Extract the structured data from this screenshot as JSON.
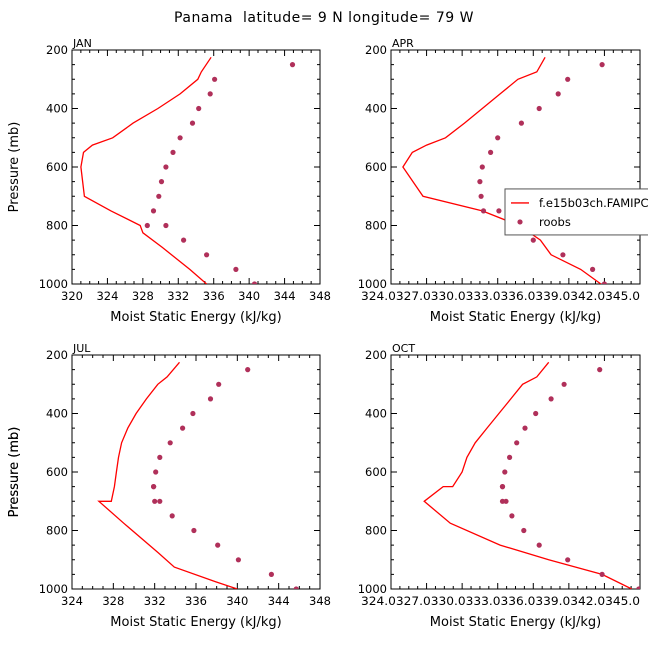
{
  "figure": {
    "title": "Panama  latitude= 9 N longitude= 79 W",
    "colors": {
      "model": "#ff0000",
      "obs": "#b0305a",
      "axes": "#000000",
      "legend_border": "#555555"
    }
  },
  "chart_data": [
    {
      "type": "line",
      "panel": "JAN",
      "xlabel": "Moist Static Energy (kJ/kg)",
      "ylabel": "Pressure (mb)",
      "xlim": [
        320,
        348
      ],
      "ylim": [
        1000,
        200
      ],
      "yscale": "linear",
      "y_reversed": true,
      "xticks": [
        "320",
        "324",
        "328",
        "332",
        "336",
        "340",
        "344",
        "348"
      ],
      "yticks": [
        "200",
        "400",
        "600",
        "800",
        "1000"
      ],
      "series": [
        {
          "name": "f.e15b03ch.FAMIPC5.ne30_g16.ctrl",
          "type": "line",
          "x": [
            335.7,
            334.6,
            334.2,
            332.2,
            329.7,
            326.9,
            324.6,
            322.3,
            321.3,
            321.0,
            321.4,
            324.4,
            327.7,
            328.0,
            330.2,
            333.3,
            335.2
          ],
          "y": [
            225,
            275,
            300,
            350,
            400,
            450,
            500,
            525,
            550,
            600,
            700,
            750,
            800,
            825,
            875,
            950,
            1000
          ]
        },
        {
          "name": "roobs",
          "type": "scatter",
          "x": [
            344.9,
            336.1,
            335.6,
            334.3,
            333.6,
            332.2,
            331.4,
            330.6,
            330.1,
            329.8,
            329.2,
            328.5,
            330.6,
            332.6,
            335.2,
            338.5,
            340.6
          ],
          "y": [
            250,
            300,
            350,
            400,
            450,
            500,
            550,
            600,
            650,
            700,
            750,
            800,
            800,
            850,
            900,
            950,
            1000
          ]
        }
      ]
    },
    {
      "type": "line",
      "panel": "APR",
      "xlabel": "Moist Static Energy (kJ/kg)",
      "ylabel": "",
      "xlim": [
        324.0,
        345.0
      ],
      "ylim": [
        1000,
        200
      ],
      "y_reversed": true,
      "xticks": [
        "324.0",
        "327.0",
        "330.0",
        "333.0",
        "336.0",
        "339.0",
        "342.0",
        "345.0"
      ],
      "xtick_display": "324.0327.0330.0333.0336.0339.0342.0345.0",
      "yticks": [
        "200",
        "400",
        "600",
        "800",
        "1000"
      ],
      "legend": {
        "position": "right",
        "entries": [
          "f.e15b03ch.FAMIPC5.ne30_g16.ctrl",
          "roobs"
        ]
      },
      "series": [
        {
          "name": "f.e15b03ch.FAMIPC5.ne30_g16.ctrl",
          "type": "line",
          "x": [
            337.0,
            336.3,
            334.7,
            333.2,
            331.7,
            330.2,
            328.6,
            327.0,
            325.8,
            325.0,
            326.7,
            331.7,
            334.8,
            336.6,
            337.5,
            340.0,
            341.7
          ],
          "y": [
            225,
            275,
            300,
            350,
            400,
            450,
            500,
            525,
            550,
            600,
            700,
            750,
            800,
            850,
            900,
            950,
            1000
          ]
        },
        {
          "name": "roobs",
          "type": "scatter",
          "x": [
            341.8,
            338.9,
            338.1,
            336.5,
            335.0,
            333.0,
            332.4,
            331.7,
            331.5,
            331.6,
            331.8,
            333.1,
            335.5,
            336.0,
            338.5,
            341.0,
            342.0
          ],
          "y": [
            250,
            300,
            350,
            400,
            450,
            500,
            550,
            600,
            650,
            700,
            750,
            750,
            800,
            850,
            900,
            950,
            1000
          ]
        }
      ]
    },
    {
      "type": "line",
      "panel": "JUL",
      "xlabel": "Moist Static Energy (kJ/kg)",
      "ylabel": "Pressure (mb)",
      "xlim": [
        324,
        348
      ],
      "ylim": [
        1000,
        200
      ],
      "y_reversed": true,
      "xticks": [
        "324",
        "328",
        "332",
        "336",
        "340",
        "344",
        "348"
      ],
      "yticks": [
        "200",
        "400",
        "600",
        "800",
        "1000"
      ],
      "series": [
        {
          "name": "f.e15b03ch.FAMIPC5.ne30_g16.ctrl",
          "type": "line",
          "x": [
            334.4,
            333.2,
            332.3,
            331.2,
            330.2,
            329.4,
            328.8,
            328.5,
            328.3,
            328.1,
            327.8,
            326.6,
            329.0,
            332.3,
            333.9,
            337.9,
            340.0
          ],
          "y": [
            225,
            275,
            300,
            350,
            400,
            450,
            500,
            550,
            600,
            650,
            700,
            700,
            775,
            875,
            925,
            975,
            1000
          ]
        },
        {
          "name": "roobs",
          "type": "scatter",
          "x": [
            341.0,
            338.2,
            337.4,
            335.7,
            334.7,
            333.5,
            332.5,
            332.1,
            331.9,
            331.9,
            332.0,
            332.5,
            333.7,
            335.8,
            338.1,
            340.1,
            343.3,
            345.7
          ],
          "y": [
            250,
            300,
            350,
            400,
            450,
            500,
            550,
            600,
            650,
            650,
            700,
            700,
            750,
            800,
            850,
            900,
            950,
            1000
          ]
        }
      ]
    },
    {
      "type": "line",
      "panel": "OCT",
      "xlabel": "Moist Static Energy (kJ/kg)",
      "ylabel": "Pressure (mb)",
      "xlim": [
        324.0,
        345.0
      ],
      "ylim": [
        1000,
        200
      ],
      "y_reversed": true,
      "xticks": [
        "324.0",
        "327.0",
        "330.0",
        "333.0",
        "336.0",
        "339.0",
        "342.0",
        "345.0"
      ],
      "xtick_display": "324.0327.0330.0333.0336.0339.0342.0345.0",
      "yticks": [
        "200",
        "400",
        "600",
        "800",
        "1000"
      ],
      "series": [
        {
          "name": "f.e15b03ch.FAMIPC5.ne30_g16.ctrl",
          "type": "line",
          "x": [
            337.3,
            336.3,
            335.1,
            334.1,
            333.1,
            332.1,
            331.1,
            330.4,
            330.0,
            329.2,
            328.4,
            326.8,
            329.0,
            333.2,
            337.3,
            341.8,
            344.3
          ],
          "y": [
            225,
            275,
            300,
            350,
            400,
            450,
            500,
            550,
            600,
            650,
            650,
            700,
            775,
            850,
            900,
            950,
            1000
          ]
        },
        {
          "name": "roobs",
          "type": "scatter",
          "x": [
            341.6,
            338.6,
            337.5,
            336.2,
            335.3,
            334.6,
            334.0,
            333.6,
            333.4,
            333.4,
            333.4,
            333.7,
            334.2,
            335.2,
            336.5,
            338.9,
            341.8,
            344.9
          ],
          "y": [
            250,
            300,
            350,
            400,
            450,
            500,
            550,
            600,
            650,
            650,
            700,
            700,
            750,
            800,
            850,
            900,
            950,
            1000
          ]
        }
      ]
    }
  ]
}
